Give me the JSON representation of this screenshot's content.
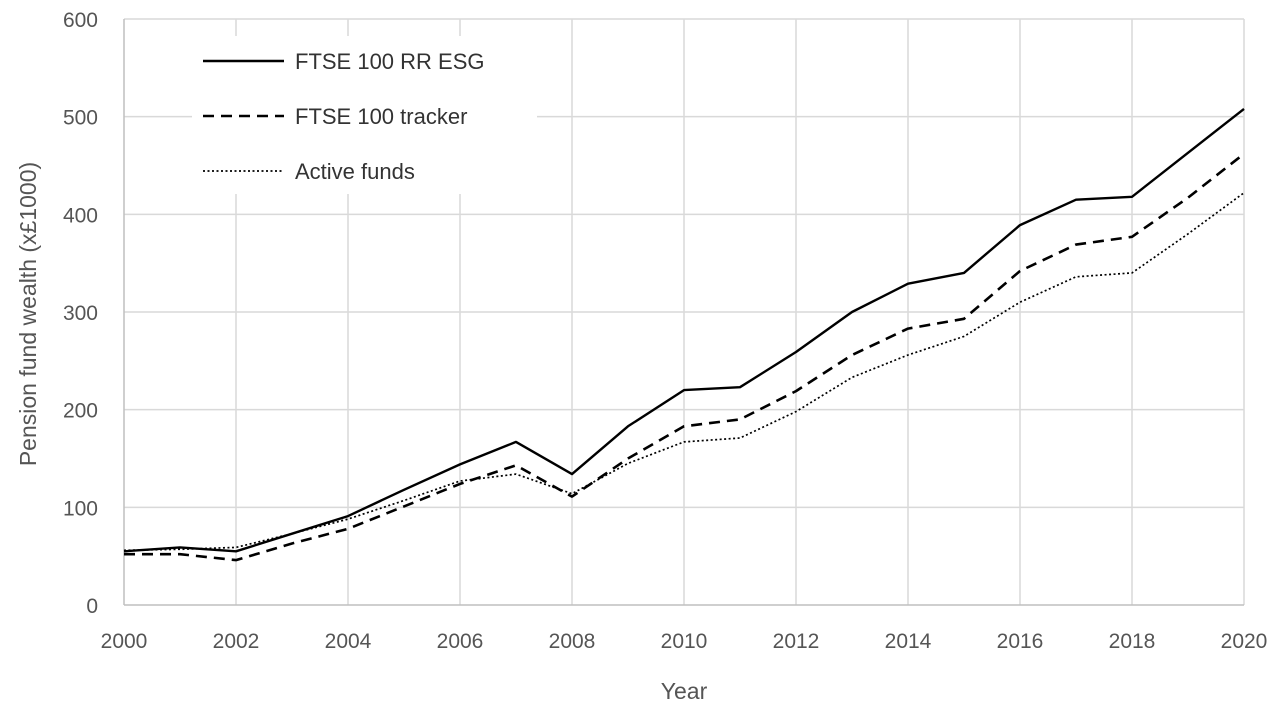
{
  "chart_data": {
    "type": "line",
    "title": "",
    "xlabel": "Year",
    "ylabel": "Pension fund wealth  (x£1000)",
    "xlim": [
      2000,
      2020
    ],
    "ylim": [
      0,
      600
    ],
    "xticks": [
      2000,
      2002,
      2004,
      2006,
      2008,
      2010,
      2012,
      2014,
      2016,
      2018,
      2020
    ],
    "yticks": [
      0,
      100,
      200,
      300,
      400,
      500,
      600
    ],
    "grid": true,
    "legend_position": "top-left",
    "x": [
      2000,
      2001,
      2002,
      2003,
      2004,
      2005,
      2006,
      2007,
      2008,
      2009,
      2010,
      2011,
      2012,
      2013,
      2014,
      2015,
      2016,
      2017,
      2018,
      2019,
      2020
    ],
    "series": [
      {
        "name": "FTSE 100 RR ESG",
        "style": "solid",
        "color": "#000000",
        "values": [
          55,
          59,
          55,
          73,
          91,
          118,
          144,
          167,
          134,
          183,
          220,
          223,
          259,
          300,
          329,
          340,
          389,
          415,
          418,
          463,
          508
        ]
      },
      {
        "name": "FTSE 100 tracker",
        "style": "dashed",
        "color": "#000000",
        "values": [
          52,
          52,
          46,
          63,
          78,
          101,
          124,
          143,
          111,
          150,
          183,
          190,
          219,
          256,
          283,
          293,
          342,
          369,
          377,
          417,
          462
        ]
      },
      {
        "name": "Active funds",
        "style": "dotted",
        "color": "#000000",
        "values": [
          56,
          57,
          59,
          73,
          88,
          107,
          127,
          134,
          114,
          145,
          167,
          171,
          198,
          233,
          256,
          275,
          310,
          336,
          340,
          380,
          422
        ]
      }
    ]
  }
}
